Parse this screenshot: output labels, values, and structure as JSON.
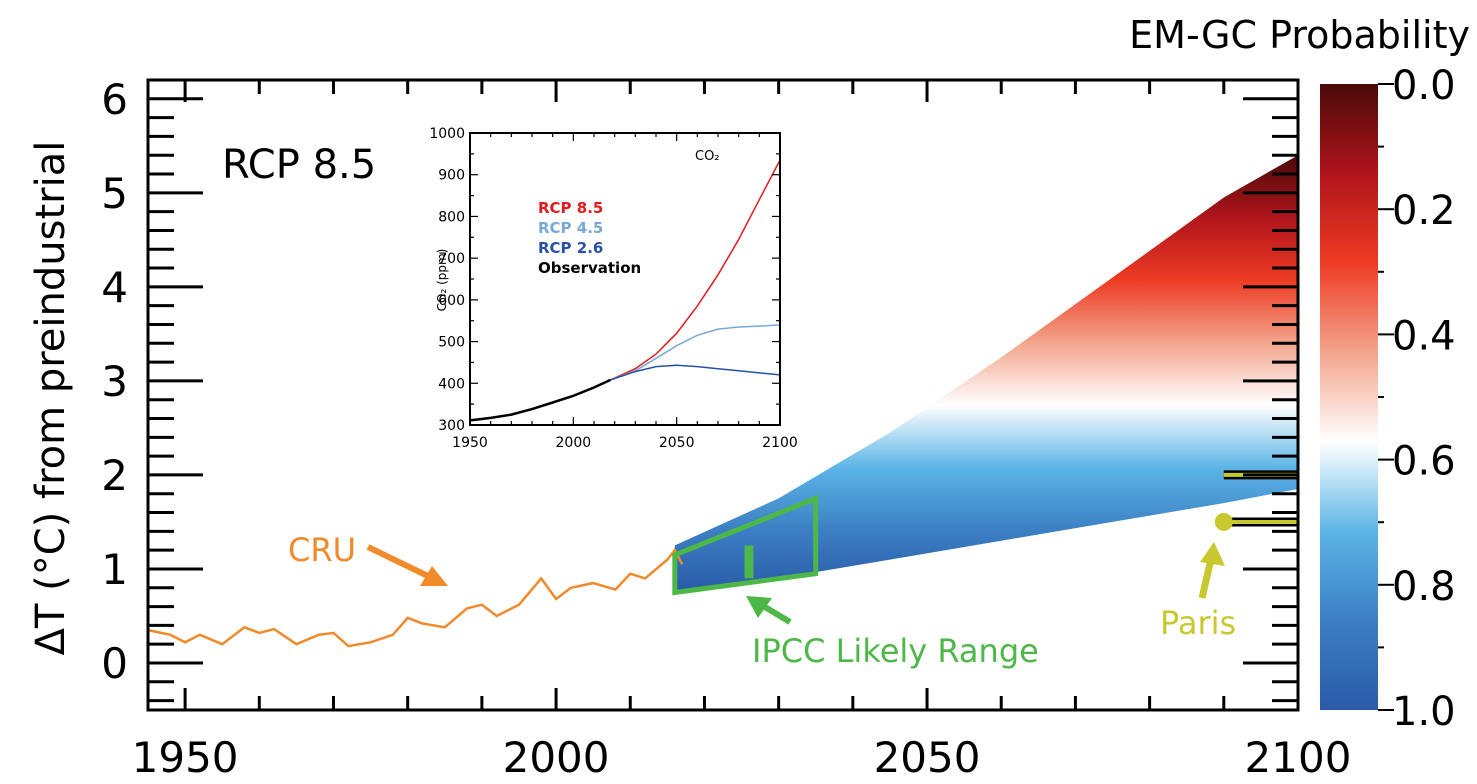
{
  "colors": {
    "cru": "#f08a2a",
    "ipcc": "#4db848",
    "paris": "#c7c92e",
    "rcp85": "#e31a1c",
    "rcp45": "#78a8d8",
    "rcp26": "#2850a8",
    "observation": "#000000"
  },
  "chart_data": [
    {
      "type": "area",
      "scenario_label": "RCP 8.5",
      "ylabel": "ΔT (°C) from preindustrial",
      "xlim": [
        1945,
        2100
      ],
      "ylim": [
        -0.5,
        6.2
      ],
      "x_ticks": [
        "1950",
        "2000",
        "2050",
        "2100"
      ],
      "y_ticks": [
        "0",
        "1",
        "2",
        "3",
        "4",
        "5",
        "6"
      ],
      "projection_envelope": {
        "x": [
          2016,
          2030,
          2045,
          2060,
          2075,
          2090,
          2100
        ],
        "upper": [
          1.25,
          1.75,
          2.45,
          3.25,
          4.1,
          4.95,
          5.4
        ],
        "lower": [
          0.75,
          0.9,
          1.1,
          1.3,
          1.5,
          1.7,
          1.85
        ]
      },
      "cru_observations": {
        "x": [
          1945,
          1948,
          1950,
          1952,
          1955,
          1958,
          1960,
          1962,
          1965,
          1968,
          1970,
          1972,
          1975,
          1978,
          1980,
          1982,
          1985,
          1988,
          1990,
          1992,
          1995,
          1998,
          2000,
          2002,
          2005,
          2008,
          2010,
          2012,
          2015,
          2016,
          2017
        ],
        "y": [
          0.35,
          0.3,
          0.22,
          0.3,
          0.2,
          0.38,
          0.32,
          0.36,
          0.2,
          0.3,
          0.32,
          0.18,
          0.22,
          0.3,
          0.48,
          0.42,
          0.38,
          0.58,
          0.62,
          0.5,
          0.62,
          0.9,
          0.68,
          0.8,
          0.85,
          0.78,
          0.95,
          0.9,
          1.1,
          1.2,
          1.05
        ]
      },
      "annotations": {
        "cru": "CRU",
        "ipcc": "IPCC Likely Range",
        "paris": "Paris"
      },
      "ipcc_likely_range": {
        "x": [
          2016,
          2035
        ],
        "bottom_left": 0.75,
        "top_left": 1.15,
        "bottom_right": 0.95,
        "top_right": 1.75,
        "marker_year": 2026,
        "marker_range": [
          0.9,
          1.25
        ]
      },
      "paris_targets": [
        2.0,
        1.5
      ],
      "paris_marker_year": 2090
    },
    {
      "type": "line",
      "title": "CO₂",
      "ylabel": "CO₂ (ppm)",
      "xlim": [
        1950,
        2100
      ],
      "ylim": [
        300,
        1000
      ],
      "x_ticks": [
        "1950",
        "2000",
        "2050",
        "2100"
      ],
      "y_ticks": [
        "300",
        "400",
        "500",
        "600",
        "700",
        "800",
        "900",
        "1000"
      ],
      "series": [
        {
          "name": "RCP 8.5",
          "x": [
            2018,
            2030,
            2040,
            2050,
            2060,
            2070,
            2080,
            2090,
            2100
          ],
          "y": [
            408,
            435,
            470,
            520,
            585,
            660,
            745,
            840,
            935
          ]
        },
        {
          "name": "RCP 4.5",
          "x": [
            2018,
            2030,
            2040,
            2050,
            2060,
            2070,
            2080,
            2090,
            2100
          ],
          "y": [
            408,
            430,
            460,
            490,
            515,
            530,
            535,
            537,
            540
          ]
        },
        {
          "name": "RCP 2.6",
          "x": [
            2018,
            2030,
            2040,
            2050,
            2060,
            2070,
            2080,
            2090,
            2100
          ],
          "y": [
            408,
            428,
            440,
            443,
            440,
            435,
            430,
            425,
            420
          ]
        },
        {
          "name": "Observation",
          "x": [
            1950,
            1960,
            1970,
            1980,
            1990,
            2000,
            2010,
            2018
          ],
          "y": [
            311,
            317,
            325,
            338,
            354,
            370,
            390,
            408
          ]
        }
      ]
    },
    {
      "type": "heatmap",
      "title": "EM-GC Probability",
      "tick_labels": [
        "0.0",
        "0.2",
        "0.4",
        "0.6",
        "0.8",
        "1.0"
      ],
      "tick_values": [
        0.0,
        0.2,
        0.4,
        0.6,
        0.8,
        1.0
      ],
      "colors": [
        "#4a0a08",
        "#b0141b",
        "#ee3b24",
        "#f3a48c",
        "#ffffff",
        "#5cb5e6",
        "#3c7fc4",
        "#2a5aa8"
      ]
    }
  ]
}
